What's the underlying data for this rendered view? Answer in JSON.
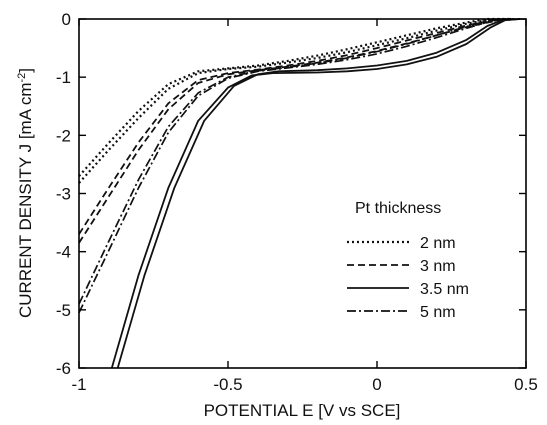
{
  "chart_data": {
    "type": "line",
    "xlabel": "POTENTIAL E [V vs SCE]",
    "ylabel_main": "CURRENT DENSITY J [mA cm",
    "ylabel_sup": "-2",
    "ylabel_end": "]",
    "xlim": [
      -1,
      0.5
    ],
    "ylim": [
      -6,
      0
    ],
    "x_ticks": [
      -1,
      -0.5,
      0,
      0.5
    ],
    "x_tick_labels": [
      "-1",
      "-0.5",
      "0",
      "0.5"
    ],
    "y_ticks": [
      0,
      -1,
      -2,
      -3,
      -4,
      -5,
      -6
    ],
    "y_tick_labels": [
      "0",
      "-1",
      "-2",
      "-3",
      "-4",
      "-5",
      "-6"
    ],
    "grid": false,
    "legend": {
      "title": "Pt  thickness",
      "placement": "lower-right",
      "entries": [
        {
          "label": "2 nm",
          "dash": "dotted"
        },
        {
          "label": "3 nm",
          "dash": "dashed"
        },
        {
          "label": "3.5 nm",
          "dash": "solid"
        },
        {
          "label": "5 nm",
          "dash": "dashdot"
        }
      ]
    },
    "series": [
      {
        "legend_index": 0,
        "dash": "dotted",
        "points": [
          [
            -1,
            -2.82
          ],
          [
            -0.9,
            -2.25
          ],
          [
            -0.8,
            -1.7
          ],
          [
            -0.7,
            -1.2
          ],
          [
            -0.6,
            -0.93
          ],
          [
            -0.5,
            -0.86
          ],
          [
            -0.4,
            -0.82
          ],
          [
            -0.3,
            -0.75
          ],
          [
            -0.2,
            -0.67
          ],
          [
            -0.1,
            -0.57
          ],
          [
            0,
            -0.45
          ],
          [
            0.1,
            -0.33
          ],
          [
            0.2,
            -0.2
          ],
          [
            0.3,
            -0.08
          ],
          [
            0.38,
            -0.01
          ],
          [
            0.45,
            0
          ]
        ]
      },
      {
        "legend_index": 0,
        "dash": "dotted",
        "points": [
          [
            -1,
            -2.7
          ],
          [
            -0.9,
            -2.13
          ],
          [
            -0.8,
            -1.58
          ],
          [
            -0.7,
            -1.12
          ],
          [
            -0.6,
            -0.9
          ],
          [
            -0.5,
            -0.85
          ],
          [
            -0.4,
            -0.8
          ],
          [
            -0.3,
            -0.72
          ],
          [
            -0.2,
            -0.63
          ],
          [
            -0.1,
            -0.52
          ],
          [
            0,
            -0.4
          ],
          [
            0.1,
            -0.28
          ],
          [
            0.2,
            -0.16
          ],
          [
            0.3,
            -0.06
          ],
          [
            0.37,
            0
          ],
          [
            0.45,
            0
          ]
        ]
      },
      {
        "legend_index": 1,
        "dash": "dashed",
        "points": [
          [
            -1,
            -3.85
          ],
          [
            -0.9,
            -3.05
          ],
          [
            -0.8,
            -2.25
          ],
          [
            -0.7,
            -1.55
          ],
          [
            -0.6,
            -1.1
          ],
          [
            -0.5,
            -0.95
          ],
          [
            -0.4,
            -0.88
          ],
          [
            -0.3,
            -0.82
          ],
          [
            -0.2,
            -0.75
          ],
          [
            -0.1,
            -0.66
          ],
          [
            0,
            -0.55
          ],
          [
            0.1,
            -0.42
          ],
          [
            0.2,
            -0.28
          ],
          [
            0.3,
            -0.14
          ],
          [
            0.4,
            -0.03
          ],
          [
            0.46,
            0
          ]
        ]
      },
      {
        "legend_index": 1,
        "dash": "dashed",
        "points": [
          [
            -1,
            -3.7
          ],
          [
            -0.9,
            -2.9
          ],
          [
            -0.8,
            -2.12
          ],
          [
            -0.7,
            -1.45
          ],
          [
            -0.6,
            -1.05
          ],
          [
            -0.5,
            -0.93
          ],
          [
            -0.4,
            -0.87
          ],
          [
            -0.3,
            -0.8
          ],
          [
            -0.2,
            -0.72
          ],
          [
            -0.1,
            -0.62
          ],
          [
            0,
            -0.5
          ],
          [
            0.1,
            -0.37
          ],
          [
            0.2,
            -0.24
          ],
          [
            0.3,
            -0.11
          ],
          [
            0.39,
            -0.02
          ],
          [
            0.46,
            0
          ]
        ]
      },
      {
        "legend_index": 2,
        "dash": "solid",
        "points": [
          [
            -0.89,
            -6
          ],
          [
            -0.8,
            -4.4
          ],
          [
            -0.7,
            -2.9
          ],
          [
            -0.6,
            -1.75
          ],
          [
            -0.5,
            -1.18
          ],
          [
            -0.42,
            -0.97
          ],
          [
            -0.35,
            -0.93
          ],
          [
            -0.2,
            -0.92
          ],
          [
            -0.1,
            -0.9
          ],
          [
            0,
            -0.86
          ],
          [
            0.1,
            -0.78
          ],
          [
            0.2,
            -0.65
          ],
          [
            0.3,
            -0.43
          ],
          [
            0.38,
            -0.15
          ],
          [
            0.43,
            -0.02
          ],
          [
            0.48,
            0
          ]
        ]
      },
      {
        "legend_index": 2,
        "dash": "solid",
        "points": [
          [
            -0.87,
            -6
          ],
          [
            -0.78,
            -4.4
          ],
          [
            -0.68,
            -2.9
          ],
          [
            -0.58,
            -1.75
          ],
          [
            -0.48,
            -1.15
          ],
          [
            -0.4,
            -0.95
          ],
          [
            -0.33,
            -0.9
          ],
          [
            -0.2,
            -0.88
          ],
          [
            -0.1,
            -0.85
          ],
          [
            0,
            -0.8
          ],
          [
            0.1,
            -0.72
          ],
          [
            0.2,
            -0.58
          ],
          [
            0.3,
            -0.36
          ],
          [
            0.37,
            -0.12
          ],
          [
            0.42,
            -0.02
          ],
          [
            0.48,
            0
          ]
        ]
      },
      {
        "legend_index": 3,
        "dash": "dashdot",
        "points": [
          [
            -1,
            -5.05
          ],
          [
            -0.9,
            -3.98
          ],
          [
            -0.8,
            -2.9
          ],
          [
            -0.7,
            -1.95
          ],
          [
            -0.6,
            -1.32
          ],
          [
            -0.5,
            -1.02
          ],
          [
            -0.4,
            -0.9
          ],
          [
            -0.3,
            -0.84
          ],
          [
            -0.2,
            -0.78
          ],
          [
            -0.1,
            -0.7
          ],
          [
            0,
            -0.6
          ],
          [
            0.1,
            -0.47
          ],
          [
            0.2,
            -0.32
          ],
          [
            0.3,
            -0.16
          ],
          [
            0.38,
            -0.04
          ],
          [
            0.45,
            0
          ]
        ]
      },
      {
        "legend_index": 3,
        "dash": "dashdot",
        "points": [
          [
            -1,
            -4.9
          ],
          [
            -0.9,
            -3.82
          ],
          [
            -0.8,
            -2.76
          ],
          [
            -0.7,
            -1.85
          ],
          [
            -0.6,
            -1.27
          ],
          [
            -0.5,
            -1
          ],
          [
            -0.4,
            -0.89
          ],
          [
            -0.3,
            -0.83
          ],
          [
            -0.2,
            -0.76
          ],
          [
            -0.1,
            -0.67
          ],
          [
            0,
            -0.56
          ],
          [
            0.1,
            -0.43
          ],
          [
            0.2,
            -0.28
          ],
          [
            0.3,
            -0.13
          ],
          [
            0.37,
            -0.03
          ],
          [
            0.45,
            0
          ]
        ]
      }
    ]
  }
}
